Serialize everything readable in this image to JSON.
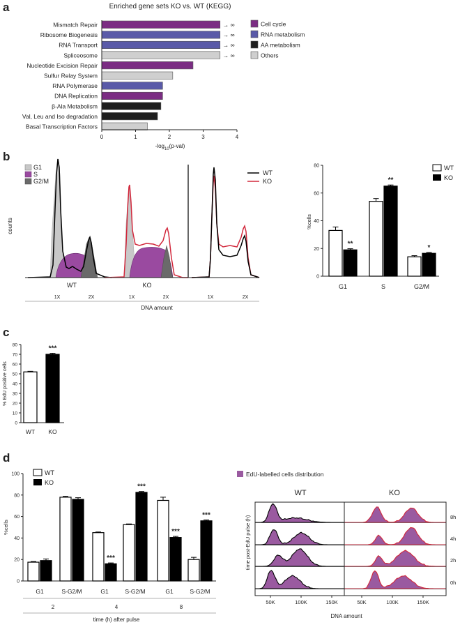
{
  "colors": {
    "cell_cycle": "#7b2d83",
    "rna": "#5a5aa8",
    "aa": "#1e1e1e",
    "others": "#cfcfcf",
    "wt_line": "#000000",
    "ko_line": "#d2283c",
    "s_fill": "#9a4aa0",
    "g_fill": "#c8c8c8",
    "gm_fill": "#6a6a6a",
    "edu": "#9a5aa0"
  },
  "panel_labels": {
    "a": "a",
    "b": "b",
    "c": "c",
    "d": "d"
  },
  "chart_data": [
    {
      "id": "a",
      "type": "bar",
      "orientation": "horizontal",
      "title": "Enriched gene sets KO vs. WT (KEGG)",
      "xlabel": "-log10(p-val)",
      "xlabel_main": "-log",
      "xlabel_sub": "10",
      "xlabel_tail": "(p-val)",
      "xlim": [
        0,
        4
      ],
      "xticks": [
        "0",
        "1",
        "2",
        "3",
        "4"
      ],
      "categories": [
        "Mismatch Repair",
        "Ribosome Biogenesis",
        "RNA Transport",
        "Spliceosome",
        "Nucleotide Excision Repair",
        "Sulfur Relay System",
        "RNA Polymerase",
        "DNA Replication",
        "β-Ala Metabolism",
        "Val, Leu and Iso degradation",
        "Basal Transcription Factors"
      ],
      "values": [
        3.5,
        3.5,
        3.5,
        3.5,
        2.7,
        2.1,
        1.8,
        1.8,
        1.75,
        1.65,
        1.35
      ],
      "groups": [
        "cell_cycle",
        "rna",
        "rna",
        "others",
        "cell_cycle",
        "others",
        "rna",
        "cell_cycle",
        "aa",
        "aa",
        "others"
      ],
      "infinite": [
        "→ ∞",
        "→ ∞",
        "→ ∞",
        "→ ∞"
      ],
      "legend": [
        {
          "key": "cell_cycle",
          "label": "Cell cycle"
        },
        {
          "key": "rna",
          "label": "RNA metabolism"
        },
        {
          "key": "aa",
          "label": "AA metabolism"
        },
        {
          "key": "others",
          "label": "Others"
        }
      ]
    },
    {
      "id": "b_hist",
      "type": "area",
      "ylabel": "counts",
      "xlabel": "DNA amount",
      "phase_legend": [
        "G1",
        "S",
        "G2/M"
      ],
      "line_legend": [
        "WT",
        "KO"
      ],
      "sub_labels": [
        "WT",
        "KO"
      ],
      "ticks": [
        "1X",
        "2X",
        "1X",
        "2X",
        "1X",
        "2X"
      ]
    },
    {
      "id": "b_bar",
      "type": "bar",
      "categories": [
        "G1",
        "S",
        "G2/M"
      ],
      "series": [
        {
          "name": "WT",
          "values": [
            33,
            54,
            14
          ],
          "errors": [
            2.5,
            2,
            0.8
          ]
        },
        {
          "name": "KO",
          "values": [
            19,
            65,
            16.5
          ],
          "errors": [
            0.8,
            0.8,
            0.6
          ]
        }
      ],
      "significance": [
        "**",
        "**",
        "*"
      ],
      "ylabel": "%cells",
      "ylim": [
        0,
        80
      ],
      "yticks": [
        "0",
        "20",
        "40",
        "60",
        "80"
      ]
    },
    {
      "id": "c",
      "type": "bar",
      "categories": [
        "WT",
        "KO"
      ],
      "values": [
        52,
        70
      ],
      "errors": [
        0.6,
        1
      ],
      "significance": [
        "",
        "***"
      ],
      "ylabel": "% EdU positive cells",
      "ylim": [
        0,
        80
      ],
      "yticks": [
        "0",
        "10",
        "20",
        "30",
        "40",
        "50",
        "60",
        "70",
        "80"
      ]
    },
    {
      "id": "d_bar",
      "type": "bar",
      "categories": [
        "G1",
        "S-G2/M",
        "G1",
        "S-G2/M",
        "G1",
        "S-G2/M"
      ],
      "timepoints": [
        "2",
        "4",
        "8"
      ],
      "series": [
        {
          "name": "WT",
          "values": [
            17.5,
            78,
            45,
            52.5,
            75,
            20
          ],
          "errors": [
            0.6,
            0.8,
            0.6,
            0.6,
            3,
            2
          ]
        },
        {
          "name": "KO",
          "values": [
            19,
            76,
            16,
            82.5,
            40.5,
            56
          ],
          "errors": [
            1.5,
            1.5,
            0.8,
            0.8,
            1,
            0.8
          ]
        }
      ],
      "significance": [
        "",
        "",
        "***",
        "***",
        "***",
        "***"
      ],
      "ylabel": "%cells",
      "xlabel": "time (h) after pulse",
      "ylim": [
        0,
        100
      ],
      "yticks": [
        "0",
        "20",
        "40",
        "60",
        "80",
        "100"
      ]
    },
    {
      "id": "d_ridge",
      "type": "area",
      "legend": "EdU-labelled cells distribution",
      "columns": [
        "WT",
        "KO"
      ],
      "rows": [
        "8h",
        "4h",
        "2h",
        "0h"
      ],
      "ylabel": "time post-EdU pulse (h)",
      "xlabel": "DNA amount",
      "xticks": [
        "50K",
        "100K",
        "150K",
        "50K",
        "100K",
        "150K"
      ]
    }
  ]
}
